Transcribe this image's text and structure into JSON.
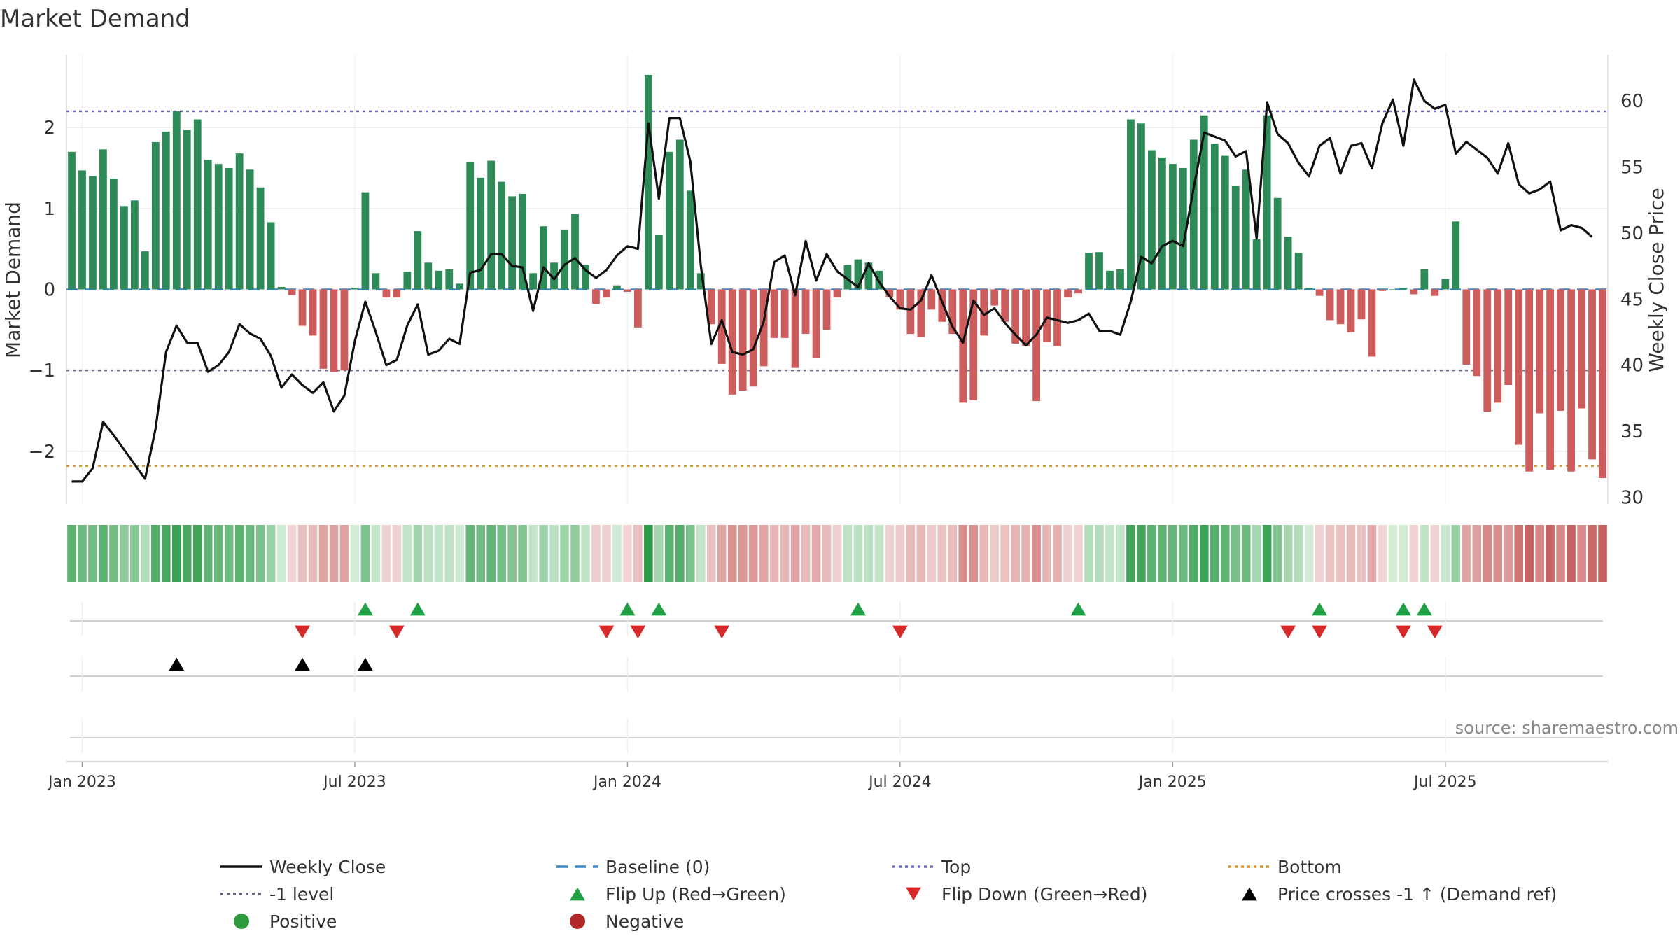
{
  "chart_data": {
    "type": "bar",
    "title": "Market Demand",
    "ylabel_left": "Market Demand",
    "ylabel_right": "Weekly Close Price",
    "source": "source: sharemaestro.com",
    "x_ticks": [
      "Jan 2023",
      "Jul 2023",
      "Jan 2024",
      "Jul 2024",
      "Jan 2025",
      "Jul 2025"
    ],
    "x_tick_weeks": [
      1.5,
      27.5,
      53.5,
      79.5,
      105.5,
      131.5
    ],
    "y_left_ticks": [
      "−2",
      "−1",
      "0",
      "1",
      "2"
    ],
    "y_left_tick_values": [
      -2,
      -1,
      0,
      1,
      2
    ],
    "ylim_left": [
      -2.65,
      2.9
    ],
    "y_right_ticks": [
      "30",
      "35",
      "40",
      "45",
      "50",
      "55",
      "60"
    ],
    "y_right_tick_values": [
      30,
      35,
      40,
      45,
      50,
      55,
      60
    ],
    "ylim_right": [
      29.5,
      63.5
    ],
    "reference_lines": {
      "top": 2.2,
      "minus_one": -1,
      "bottom": -2.18,
      "baseline": 0
    },
    "demand": [
      1.7,
      1.47,
      1.4,
      1.73,
      1.37,
      1.03,
      1.1,
      0.47,
      1.82,
      1.95,
      2.2,
      1.97,
      2.1,
      1.6,
      1.55,
      1.5,
      1.68,
      1.48,
      1.26,
      0.83,
      0.03,
      -0.07,
      -0.45,
      -0.57,
      -0.98,
      -1.02,
      -1.0,
      0.02,
      1.2,
      0.2,
      -0.1,
      -0.1,
      0.22,
      0.72,
      0.33,
      0.23,
      0.25,
      0.07,
      1.57,
      1.38,
      1.59,
      1.33,
      1.15,
      1.18,
      0.2,
      0.78,
      0.33,
      0.74,
      0.93,
      0.3,
      -0.18,
      -0.1,
      0.05,
      -0.03,
      -0.47,
      2.65,
      0.67,
      1.7,
      1.85,
      1.22,
      0.2,
      -0.43,
      -0.92,
      -1.3,
      -1.25,
      -1.2,
      -0.95,
      -0.6,
      -0.6,
      -0.97,
      -0.55,
      -0.85,
      -0.5,
      -0.1,
      0.3,
      0.37,
      0.33,
      0.23,
      -0.1,
      -0.25,
      -0.55,
      -0.59,
      -0.25,
      -0.4,
      -0.55,
      -1.4,
      -1.37,
      -0.57,
      -0.2,
      -0.4,
      -0.67,
      -0.7,
      -1.38,
      -0.65,
      -0.7,
      -0.1,
      -0.05,
      0.45,
      0.46,
      0.23,
      0.25,
      2.1,
      2.05,
      1.72,
      1.63,
      1.55,
      1.5,
      1.85,
      2.15,
      1.8,
      1.65,
      1.28,
      1.48,
      0.62,
      2.15,
      1.13,
      0.65,
      0.45,
      0.02,
      -0.08,
      -0.38,
      -0.43,
      -0.53,
      -0.37,
      -0.83,
      -0.02,
      0.0,
      0.02,
      -0.06,
      0.25,
      -0.08,
      0.13,
      0.84,
      -0.93,
      -1.07,
      -1.51,
      -1.4,
      -1.18,
      -1.92,
      -2.25,
      -1.53,
      -2.23,
      -1.5,
      -2.25,
      -1.47,
      -2.1,
      -2.33
    ],
    "price": [
      31.2,
      31.2,
      32.2,
      35.7,
      34.7,
      33.6,
      32.5,
      31.4,
      35.2,
      41.0,
      43.0,
      41.7,
      41.7,
      39.5,
      40.0,
      41.0,
      43.1,
      42.4,
      42.0,
      40.7,
      38.3,
      39.3,
      38.5,
      37.9,
      38.7,
      36.5,
      37.7,
      41.8,
      44.8,
      42.5,
      40.0,
      40.4,
      43.0,
      44.6,
      40.8,
      41.1,
      42.0,
      41.6,
      47.0,
      47.2,
      48.4,
      48.4,
      47.5,
      47.4,
      44.1,
      47.4,
      46.5,
      47.6,
      48.1,
      47.2,
      46.6,
      47.2,
      48.3,
      49.0,
      48.8,
      58.3,
      52.6,
      58.7,
      58.7,
      55.4,
      47.5,
      41.6,
      43.4,
      41.0,
      40.8,
      41.2,
      43.3,
      47.8,
      48.3,
      45.3,
      49.4,
      46.4,
      48.4,
      47.1,
      46.5,
      45.9,
      47.7,
      46.3,
      45.2,
      44.3,
      44.2,
      44.9,
      46.8,
      44.8,
      42.9,
      41.7,
      44.9,
      43.8,
      44.3,
      43.2,
      42.3,
      41.5,
      42.3,
      43.6,
      43.4,
      43.2,
      43.4,
      43.9,
      42.6,
      42.6,
      42.3,
      44.8,
      48.2,
      47.7,
      49.0,
      49.4,
      49.0,
      53.4,
      57.6,
      57.3,
      57.0,
      55.8,
      56.2,
      49.6,
      59.9,
      57.5,
      56.8,
      55.3,
      54.3,
      56.6,
      57.2,
      54.5,
      56.6,
      56.8,
      54.9,
      58.3,
      60.1,
      56.6,
      61.6,
      60.0,
      59.4,
      59.7,
      56.0,
      56.9,
      56.3,
      55.7,
      54.5,
      56.8,
      53.7,
      53.0,
      53.3,
      53.9,
      50.2,
      50.6,
      50.4,
      49.7
    ],
    "flip_up_weeks": [
      28,
      33,
      53,
      56,
      75,
      96,
      119,
      127,
      129
    ],
    "flip_down_weeks": [
      22,
      31,
      51,
      54,
      62,
      79,
      116,
      119,
      127,
      130
    ],
    "cross_weeks": [
      10,
      22,
      28
    ]
  },
  "legend": [
    {
      "label": "Weekly Close",
      "kind": "line",
      "color": "#111111"
    },
    {
      "label": "Baseline (0)",
      "kind": "dash",
      "color": "#3a86c8"
    },
    {
      "label": "Top",
      "kind": "dot",
      "color": "#6f6fc4"
    },
    {
      "label": "Bottom",
      "kind": "dot",
      "color": "#d9941e"
    },
    {
      "label": "-1 level",
      "kind": "dot",
      "color": "#666688"
    },
    {
      "label": "Flip Up (Red→Green)",
      "kind": "up",
      "color": "#22a045"
    },
    {
      "label": "Flip Down (Green→Red)",
      "kind": "down",
      "color": "#d62a2a"
    },
    {
      "label": "Price crosses -1 ↑ (Demand ref)",
      "kind": "up",
      "color": "#000000"
    },
    {
      "label": "Positive",
      "kind": "circle",
      "color": "#2c9a3c"
    },
    {
      "label": "Negative",
      "kind": "circle",
      "color": "#b02a2a"
    }
  ],
  "colors": {
    "positive_bar": "#2e8b57",
    "negative_bar": "#cd5c5c",
    "price_line": "#111111"
  }
}
